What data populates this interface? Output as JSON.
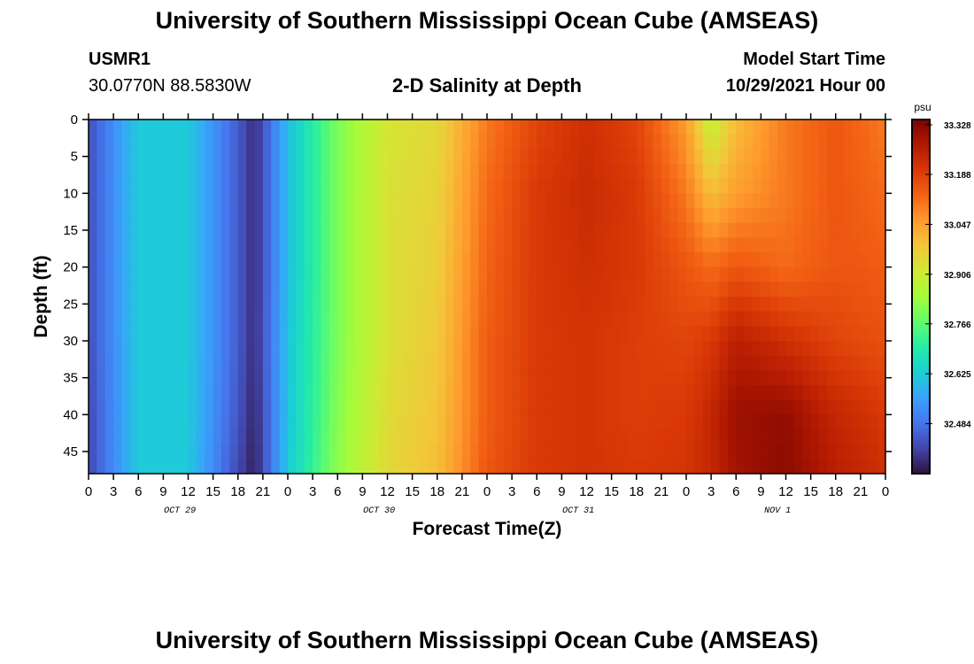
{
  "header": {
    "title": "University of Southern Mississippi Ocean Cube (AMSEAS)",
    "station_id": "USMR1",
    "station_coords": "30.0770N  88.5830W",
    "plot_title": "2-D Salinity at Depth",
    "model_start_label": "Model Start Time",
    "model_start_value": "10/29/2021 Hour 00"
  },
  "footer": {
    "title": "University of Southern Mississippi Ocean Cube (AMSEAS)"
  },
  "chart_data": {
    "type": "heatmap",
    "title": "2-D Salinity at Depth",
    "xlabel": "Forecast Time(Z)",
    "ylabel": "Depth (ft)",
    "x_hours": [
      0,
      6,
      12,
      18,
      20,
      24,
      30,
      36,
      42,
      48,
      54,
      60,
      66,
      72,
      75,
      78,
      84,
      90,
      96
    ],
    "y_depths": [
      0,
      10,
      20,
      30,
      40,
      48
    ],
    "values": [
      [
        32.43,
        32.62,
        32.62,
        32.45,
        32.38,
        32.6,
        32.8,
        32.92,
        32.95,
        33.1,
        33.18,
        33.22,
        33.18,
        33.05,
        32.88,
        33.0,
        33.1,
        33.15,
        33.1
      ],
      [
        32.43,
        32.62,
        32.62,
        32.45,
        32.38,
        32.6,
        32.8,
        32.93,
        32.96,
        33.12,
        33.2,
        33.23,
        33.2,
        33.1,
        33.0,
        33.05,
        33.1,
        33.15,
        33.12
      ],
      [
        32.43,
        32.62,
        32.62,
        32.45,
        32.38,
        32.6,
        32.8,
        32.93,
        32.97,
        33.13,
        33.2,
        33.22,
        33.2,
        33.15,
        33.12,
        33.15,
        33.12,
        33.15,
        33.14
      ],
      [
        32.43,
        32.62,
        32.62,
        32.45,
        32.38,
        32.61,
        32.8,
        32.93,
        32.98,
        33.14,
        33.2,
        33.21,
        33.19,
        33.18,
        33.2,
        33.26,
        33.22,
        33.18,
        33.16
      ],
      [
        32.42,
        32.62,
        32.62,
        32.44,
        32.37,
        32.61,
        32.81,
        32.94,
        32.99,
        33.14,
        33.2,
        33.21,
        33.19,
        33.2,
        33.24,
        33.3,
        33.31,
        33.24,
        33.2
      ],
      [
        32.42,
        32.62,
        32.62,
        32.42,
        32.36,
        32.62,
        32.82,
        32.95,
        33.0,
        33.15,
        33.2,
        33.21,
        33.2,
        33.21,
        33.24,
        33.29,
        33.32,
        33.26,
        33.22
      ]
    ],
    "xlim": [
      0,
      96
    ],
    "ylim": [
      48,
      0
    ],
    "x_ticks": [
      0,
      3,
      6,
      9,
      12,
      15,
      18,
      21,
      24,
      27,
      30,
      33,
      36,
      39,
      42,
      45,
      48,
      51,
      54,
      57,
      60,
      63,
      66,
      69,
      72,
      75,
      78,
      81,
      84,
      87,
      90,
      93,
      96
    ],
    "x_tick_labels": [
      "0",
      "3",
      "6",
      "9",
      "12",
      "15",
      "18",
      "21",
      "0",
      "3",
      "6",
      "9",
      "12",
      "15",
      "18",
      "21",
      "0",
      "3",
      "6",
      "9",
      "12",
      "15",
      "18",
      "21",
      "0",
      "3",
      "6",
      "9",
      "12",
      "15",
      "18",
      "21",
      "0"
    ],
    "y_ticks": [
      0,
      5,
      10,
      15,
      20,
      25,
      30,
      35,
      40,
      45
    ],
    "y_tick_labels": [
      "0",
      "5",
      "10",
      "15",
      "20",
      "25",
      "30",
      "35",
      "40",
      "45"
    ],
    "day_labels": [
      {
        "hour": 11,
        "text": "OCT 29"
      },
      {
        "hour": 35,
        "text": "OCT 30"
      },
      {
        "hour": 59,
        "text": "OCT 31"
      },
      {
        "hour": 83,
        "text": "NOV 1"
      }
    ],
    "colorbar": {
      "unit": "psu",
      "vmin": 32.343,
      "vmax": 33.343,
      "tick_values": [
        32.484,
        32.625,
        32.766,
        32.906,
        33.047,
        33.188,
        33.328
      ],
      "tick_labels": [
        "32.484",
        "32.625",
        "32.766",
        "32.906",
        "33.047",
        "33.188",
        "33.328"
      ],
      "colors": [
        "#30123b",
        "#4145ab",
        "#4675ed",
        "#39a2fc",
        "#1bcfd4",
        "#24eca6",
        "#61fc6c",
        "#a4fc3b",
        "#d1e834",
        "#f3c63a",
        "#fe9b2d",
        "#f36315",
        "#d93806",
        "#b11901",
        "#7a0402"
      ]
    }
  }
}
